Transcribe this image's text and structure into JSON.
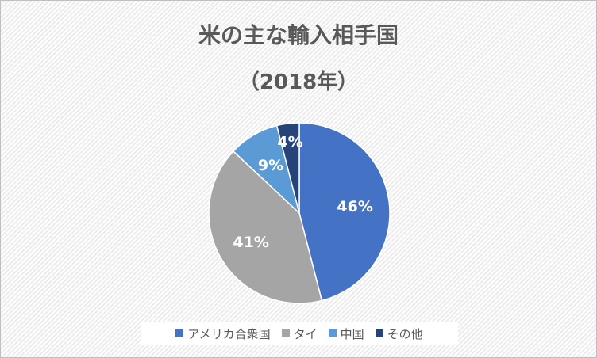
{
  "chart_data": {
    "type": "pie",
    "title": "米の主な輸入相手国",
    "subtitle": "（2018年）",
    "categories": [
      "アメリカ合衆国",
      "タイ",
      "中国",
      "その他"
    ],
    "values": [
      46,
      41,
      9,
      4
    ],
    "data_labels": [
      "46%",
      "41%",
      "9%",
      "4%"
    ],
    "colors": [
      "#4472c4",
      "#a5a5a5",
      "#5b9bd5",
      "#264478"
    ],
    "legend_position": "bottom"
  }
}
